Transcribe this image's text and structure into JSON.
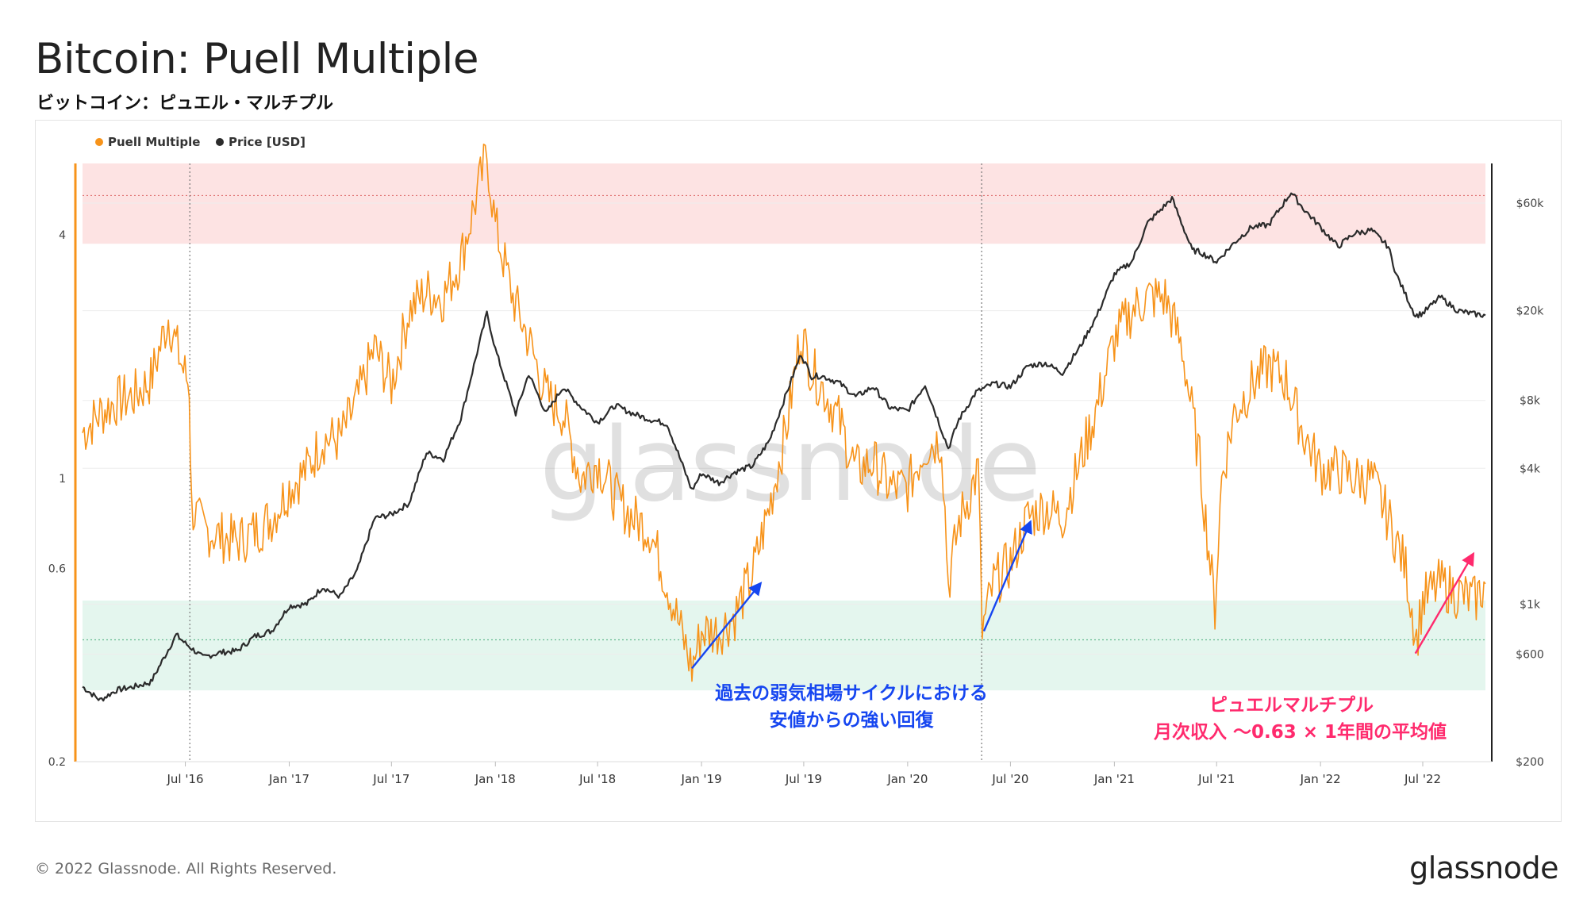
{
  "header": {
    "title": "Bitcoin: Puell Multiple",
    "subtitle": "ビットコイン：ピュエル・マルチプル"
  },
  "footer": {
    "copyright": "© 2022 Glassnode. All Rights Reserved.",
    "brand": "glassnode"
  },
  "chart_data": {
    "type": "line",
    "title": "Bitcoin: Puell Multiple",
    "watermark": "glassnode",
    "legend_placement": "top-left",
    "grid": true,
    "colors": {
      "puell": "#f7931a",
      "price": "#2b2b2b",
      "red_band": "#fde3e3",
      "green_band": "#e4f6ee",
      "blue_annotation": "#1646f0",
      "pink_annotation": "#ff2a6d"
    },
    "x_ticks": [
      "Jul '16",
      "Jan '17",
      "Jul '17",
      "Jan '18",
      "Jul '18",
      "Jan '19",
      "Jul '19",
      "Jan '20",
      "Jul '20",
      "Jan '21",
      "Jul '21",
      "Jan '22",
      "Jul '22"
    ],
    "x_tick_dates": [
      "2016-07-01",
      "2017-01-01",
      "2017-07-01",
      "2018-01-01",
      "2018-07-01",
      "2019-01-01",
      "2019-07-01",
      "2020-01-01",
      "2020-07-01",
      "2021-01-01",
      "2021-07-01",
      "2022-01-01",
      "2022-07-01"
    ],
    "x_range": [
      "2016-01-01",
      "2022-10-20"
    ],
    "y_left": {
      "scale": "log",
      "range": [
        0.2,
        6
      ],
      "ticks": [
        0.2,
        0.6,
        1,
        4
      ],
      "tick_labels": [
        "0.2",
        "0.6",
        "1",
        "4"
      ]
    },
    "y_right": {
      "scale": "log",
      "range": [
        200,
        90000
      ],
      "ticks": [
        200,
        600,
        1000,
        4000,
        8000,
        20000,
        60000
      ],
      "tick_labels": [
        "$200",
        "$600",
        "$1k",
        "$4k",
        "$8k",
        "$20k",
        "$60k"
      ]
    },
    "bands": [
      {
        "name": "upper",
        "from": 3.8,
        "to": 6,
        "color": "#fde3e3",
        "line": 5
      },
      {
        "name": "lower",
        "from": 0.3,
        "to": 0.5,
        "color": "#e4f6ee",
        "line": 0.4
      }
    ],
    "halving_dates": [
      "2016-07-09",
      "2020-05-11"
    ],
    "series": [
      {
        "name": "Puell Multiple",
        "axis": "left",
        "color": "#f7931a",
        "points": [
          [
            "2016-01-01",
            1.3
          ],
          [
            "2016-02-01",
            1.45
          ],
          [
            "2016-03-01",
            1.55
          ],
          [
            "2016-04-01",
            1.6
          ],
          [
            "2016-05-01",
            1.75
          ],
          [
            "2016-06-01",
            2.5
          ],
          [
            "2016-06-25",
            1.9
          ],
          [
            "2016-07-08",
            1.7
          ],
          [
            "2016-07-12",
            0.85
          ],
          [
            "2016-08-01",
            0.75
          ],
          [
            "2016-09-01",
            0.72
          ],
          [
            "2016-10-01",
            0.7
          ],
          [
            "2016-11-01",
            0.74
          ],
          [
            "2016-12-01",
            0.8
          ],
          [
            "2017-01-01",
            0.95
          ],
          [
            "2017-02-01",
            1.05
          ],
          [
            "2017-03-01",
            1.25
          ],
          [
            "2017-04-01",
            1.25
          ],
          [
            "2017-05-01",
            1.55
          ],
          [
            "2017-06-01",
            2.1
          ],
          [
            "2017-07-01",
            1.7
          ],
          [
            "2017-08-01",
            2.6
          ],
          [
            "2017-09-01",
            2.9
          ],
          [
            "2017-10-01",
            2.8
          ],
          [
            "2017-11-01",
            3.5
          ],
          [
            "2017-12-17",
            6.3
          ],
          [
            "2018-01-01",
            4.2
          ],
          [
            "2018-02-01",
            2.8
          ],
          [
            "2018-03-01",
            2.2
          ],
          [
            "2018-04-01",
            1.6
          ],
          [
            "2018-05-01",
            1.45
          ],
          [
            "2018-06-01",
            1.0
          ],
          [
            "2018-07-01",
            1.1
          ],
          [
            "2018-08-01",
            0.9
          ],
          [
            "2018-09-01",
            0.8
          ],
          [
            "2018-10-01",
            0.75
          ],
          [
            "2018-11-01",
            0.55
          ],
          [
            "2018-12-15",
            0.34
          ],
          [
            "2019-01-01",
            0.42
          ],
          [
            "2019-02-01",
            0.42
          ],
          [
            "2019-03-01",
            0.46
          ],
          [
            "2019-04-01",
            0.58
          ],
          [
            "2019-05-01",
            0.85
          ],
          [
            "2019-06-01",
            1.35
          ],
          [
            "2019-06-26",
            2.3
          ],
          [
            "2019-07-15",
            1.85
          ],
          [
            "2019-08-01",
            1.7
          ],
          [
            "2019-09-01",
            1.4
          ],
          [
            "2019-10-01",
            1.05
          ],
          [
            "2019-11-01",
            1.1
          ],
          [
            "2019-12-01",
            0.95
          ],
          [
            "2020-01-01",
            0.95
          ],
          [
            "2020-02-01",
            1.2
          ],
          [
            "2020-03-01",
            1.25
          ],
          [
            "2020-03-13",
            0.55
          ],
          [
            "2020-04-01",
            0.78
          ],
          [
            "2020-05-05",
            1.05
          ],
          [
            "2020-05-12",
            0.42
          ],
          [
            "2020-06-01",
            0.55
          ],
          [
            "2020-07-01",
            0.62
          ],
          [
            "2020-08-01",
            0.8
          ],
          [
            "2020-09-01",
            0.85
          ],
          [
            "2020-10-01",
            0.8
          ],
          [
            "2020-11-01",
            1.1
          ],
          [
            "2020-12-01",
            1.5
          ],
          [
            "2021-01-01",
            2.2
          ],
          [
            "2021-02-01",
            2.6
          ],
          [
            "2021-03-01",
            2.8
          ],
          [
            "2021-04-01",
            2.8
          ],
          [
            "2021-05-01",
            2.1
          ],
          [
            "2021-06-01",
            1.1
          ],
          [
            "2021-06-28",
            0.48
          ],
          [
            "2021-07-10",
            1.0
          ],
          [
            "2021-08-01",
            1.45
          ],
          [
            "2021-09-01",
            1.7
          ],
          [
            "2021-10-01",
            1.9
          ],
          [
            "2021-11-01",
            1.75
          ],
          [
            "2021-12-01",
            1.3
          ],
          [
            "2022-01-01",
            1.05
          ],
          [
            "2022-02-01",
            1.05
          ],
          [
            "2022-03-01",
            1.0
          ],
          [
            "2022-04-01",
            1.0
          ],
          [
            "2022-05-01",
            0.8
          ],
          [
            "2022-06-01",
            0.6
          ],
          [
            "2022-06-20",
            0.4
          ],
          [
            "2022-07-01",
            0.5
          ],
          [
            "2022-08-01",
            0.55
          ],
          [
            "2022-09-01",
            0.52
          ],
          [
            "2022-10-01",
            0.5
          ],
          [
            "2022-10-20",
            0.55
          ]
        ]
      },
      {
        "name": "Price [USD]",
        "axis": "right",
        "color": "#2b2b2b",
        "points": [
          [
            "2016-01-01",
            430
          ],
          [
            "2016-02-01",
            375
          ],
          [
            "2016-03-01",
            415
          ],
          [
            "2016-04-01",
            430
          ],
          [
            "2016-05-01",
            450
          ],
          [
            "2016-06-15",
            730
          ],
          [
            "2016-07-01",
            670
          ],
          [
            "2016-08-01",
            580
          ],
          [
            "2016-09-01",
            610
          ],
          [
            "2016-10-01",
            620
          ],
          [
            "2016-11-01",
            720
          ],
          [
            "2016-12-01",
            760
          ],
          [
            "2017-01-01",
            980
          ],
          [
            "2017-02-01",
            1000
          ],
          [
            "2017-03-01",
            1190
          ],
          [
            "2017-04-01",
            1080
          ],
          [
            "2017-05-01",
            1400
          ],
          [
            "2017-06-01",
            2400
          ],
          [
            "2017-07-01",
            2500
          ],
          [
            "2017-08-01",
            2800
          ],
          [
            "2017-09-01",
            4700
          ],
          [
            "2017-10-01",
            4400
          ],
          [
            "2017-11-01",
            6700
          ],
          [
            "2017-12-17",
            19500
          ],
          [
            "2018-01-01",
            13500
          ],
          [
            "2018-02-06",
            7000
          ],
          [
            "2018-03-01",
            10500
          ],
          [
            "2018-04-01",
            7000
          ],
          [
            "2018-05-01",
            9200
          ],
          [
            "2018-06-01",
            7500
          ],
          [
            "2018-07-01",
            6400
          ],
          [
            "2018-08-01",
            7600
          ],
          [
            "2018-09-01",
            7000
          ],
          [
            "2018-10-01",
            6600
          ],
          [
            "2018-11-01",
            6300
          ],
          [
            "2018-12-15",
            3200
          ],
          [
            "2019-01-01",
            3800
          ],
          [
            "2019-02-01",
            3450
          ],
          [
            "2019-03-01",
            3850
          ],
          [
            "2019-04-01",
            4100
          ],
          [
            "2019-05-01",
            5300
          ],
          [
            "2019-06-26",
            12900
          ],
          [
            "2019-07-15",
            10200
          ],
          [
            "2019-08-01",
            10300
          ],
          [
            "2019-09-01",
            9600
          ],
          [
            "2019-10-01",
            8300
          ],
          [
            "2019-11-01",
            9200
          ],
          [
            "2019-12-01",
            7400
          ],
          [
            "2020-01-01",
            7200
          ],
          [
            "2020-02-01",
            9400
          ],
          [
            "2020-03-13",
            4900
          ],
          [
            "2020-04-01",
            6600
          ],
          [
            "2020-05-01",
            8700
          ],
          [
            "2020-06-01",
            9500
          ],
          [
            "2020-07-01",
            9200
          ],
          [
            "2020-08-01",
            11400
          ],
          [
            "2020-09-01",
            11700
          ],
          [
            "2020-10-01",
            10600
          ],
          [
            "2020-11-01",
            13800
          ],
          [
            "2020-12-01",
            19000
          ],
          [
            "2021-01-01",
            29000
          ],
          [
            "2021-02-01",
            33000
          ],
          [
            "2021-03-01",
            49000
          ],
          [
            "2021-04-13",
            63000
          ],
          [
            "2021-05-19",
            37000
          ],
          [
            "2021-06-01",
            36500
          ],
          [
            "2021-07-01",
            33000
          ],
          [
            "2021-08-01",
            40000
          ],
          [
            "2021-09-01",
            47000
          ],
          [
            "2021-10-01",
            48000
          ],
          [
            "2021-11-10",
            67000
          ],
          [
            "2021-12-01",
            57000
          ],
          [
            "2022-01-01",
            47000
          ],
          [
            "2022-02-01",
            38500
          ],
          [
            "2022-03-01",
            44000
          ],
          [
            "2022-04-01",
            45500
          ],
          [
            "2022-05-01",
            38500
          ],
          [
            "2022-05-15",
            29000
          ],
          [
            "2022-06-18",
            19000
          ],
          [
            "2022-07-01",
            19500
          ],
          [
            "2022-08-01",
            23000
          ],
          [
            "2022-09-01",
            20000
          ],
          [
            "2022-10-01",
            19300
          ],
          [
            "2022-10-20",
            19100
          ]
        ]
      }
    ],
    "annotations": [
      {
        "text": [
          "過去の弱気相場サイクルにおける",
          "安値からの強い回復"
        ],
        "color": "#1646f0",
        "arrows": [
          {
            "from": [
              "2018-12-15",
              0.34
            ],
            "to": [
              "2019-04-15",
              0.55
            ]
          },
          {
            "from": [
              "2020-05-15",
              0.42
            ],
            "to": [
              "2020-08-05",
              0.78
            ]
          }
        ]
      },
      {
        "text": [
          "ピュエルマルチプル",
          "月次収入 〜0.63 × 1年間の平均値"
        ],
        "color": "#ff2a6d",
        "arrows": [
          {
            "from": [
              "2022-06-18",
              0.37
            ],
            "to": [
              "2022-09-28",
              0.65
            ]
          }
        ]
      }
    ]
  }
}
